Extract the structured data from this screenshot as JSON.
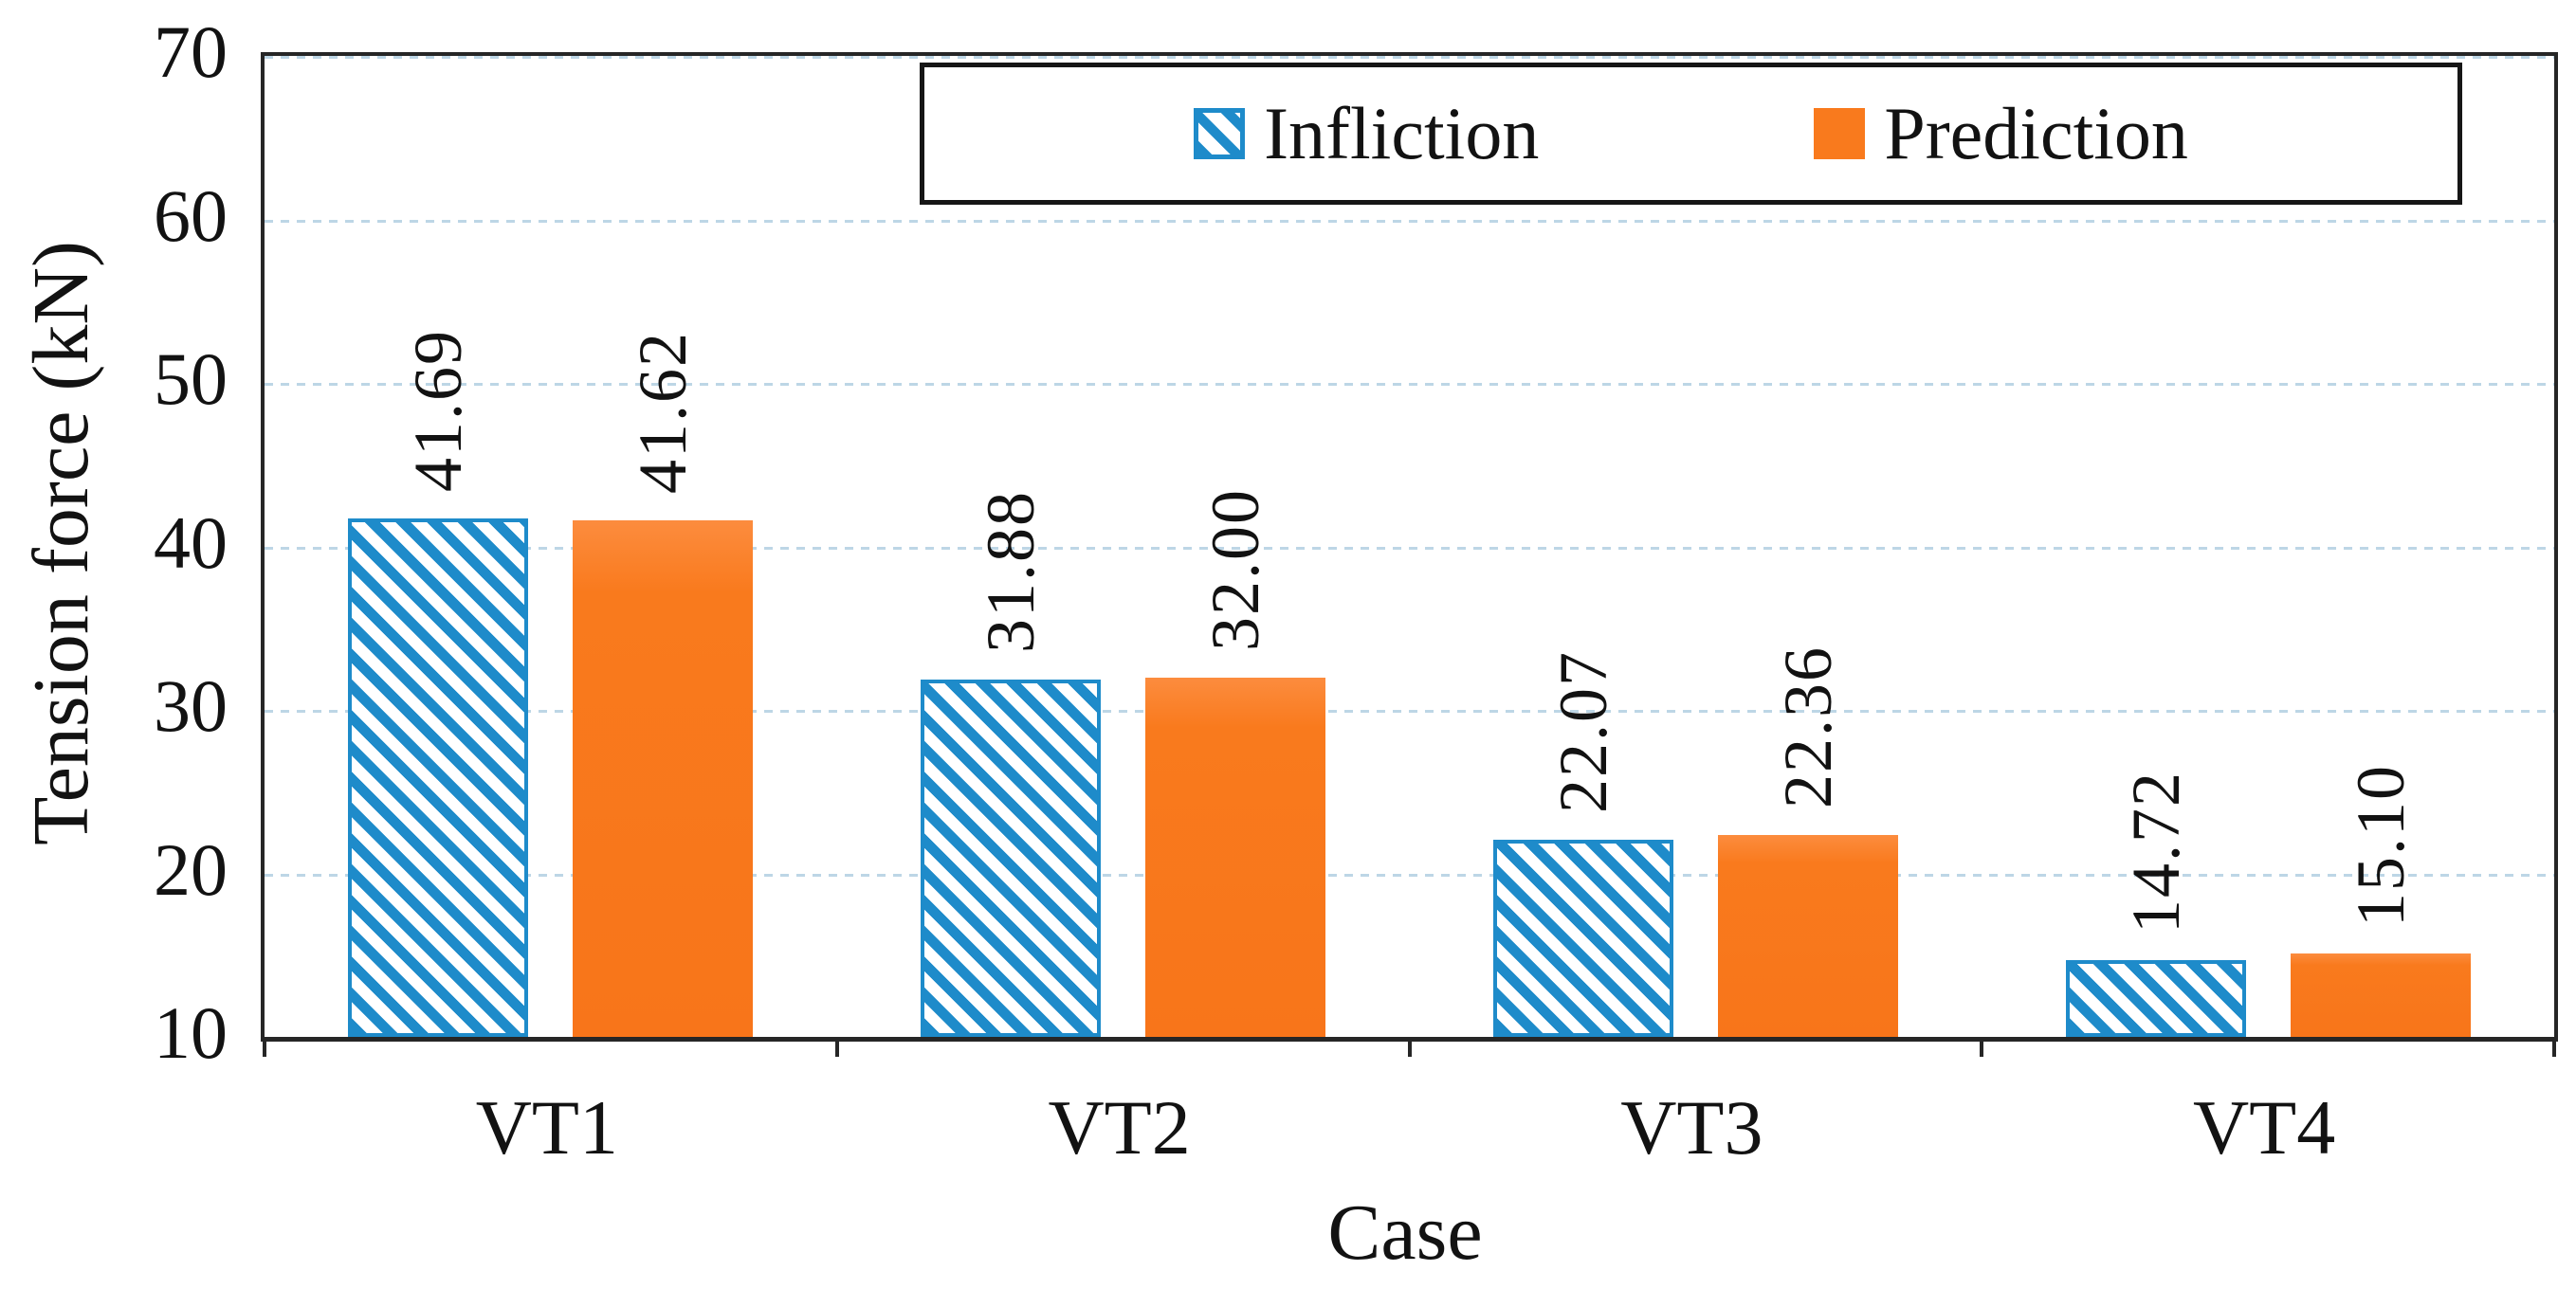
{
  "chart_data": {
    "type": "bar",
    "title": "",
    "xlabel": "Case",
    "ylabel": "Tension force (kN)",
    "categories": [
      "VT1",
      "VT2",
      "VT3",
      "VT4"
    ],
    "series": [
      {
        "name": "Infliction",
        "style": "hatched",
        "color": "#1e8bca",
        "values": [
          41.69,
          31.88,
          22.07,
          14.72
        ],
        "labels": [
          "41.69",
          "31.88",
          "22.07",
          "14.72"
        ]
      },
      {
        "name": "Prediction",
        "style": "solid",
        "color": "#f97a1d",
        "values": [
          41.62,
          32.0,
          22.36,
          15.1
        ],
        "labels": [
          "41.62",
          "32.00",
          "22.36",
          "15.10"
        ]
      }
    ],
    "ylim": [
      10,
      70
    ],
    "yticks": [
      10,
      20,
      30,
      40,
      50,
      60,
      70
    ],
    "grid": "horizontal dashed gridlines at each y tick",
    "legend_position": "top-center inside plot, boxed",
    "value_label_rotation": -90
  },
  "legend": {
    "items": [
      {
        "label": "Infliction",
        "swatch": "blue-diagonal-hatch-square"
      },
      {
        "label": "Prediction",
        "swatch": "orange-solid-square"
      }
    ]
  },
  "axes": {
    "y_title": "Tension force (kN)",
    "x_title": "Case"
  },
  "colors": {
    "infliction_blue": "#1e8bca",
    "prediction_orange": "#f97a1d",
    "gridline_blue": "#bdd6e6",
    "axis_dark": "#262626",
    "text": "#121212",
    "background": "#ffffff"
  }
}
